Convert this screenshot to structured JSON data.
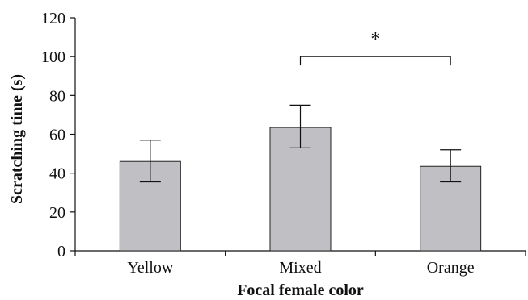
{
  "chart_data": {
    "type": "bar",
    "categories": [
      "Yellow",
      "Mixed",
      "Orange"
    ],
    "values": [
      46,
      63.5,
      43.5
    ],
    "error": [
      {
        "low": 35.5,
        "high": 57
      },
      {
        "low": 53,
        "high": 75
      },
      {
        "low": 35.5,
        "high": 52
      }
    ],
    "xlabel": "Focal female color",
    "ylabel": "Scratching time (s)",
    "ylim": [
      0,
      120
    ],
    "yticks": [
      "0",
      "20",
      "40",
      "60",
      "80",
      "100",
      "120"
    ],
    "grid": false,
    "bar_color": "#c0c0c4",
    "significance": {
      "from": "Mixed",
      "to": "Orange",
      "at": 100,
      "label": "*"
    }
  }
}
